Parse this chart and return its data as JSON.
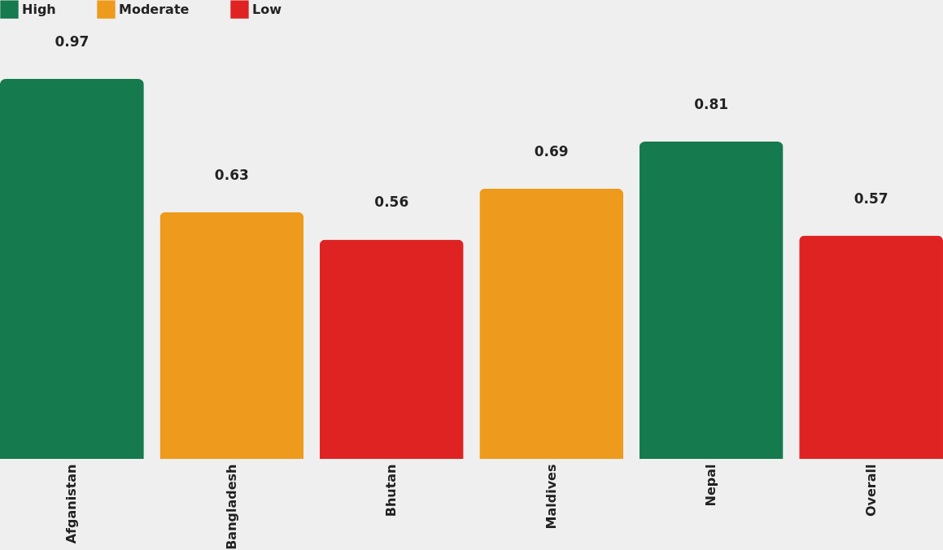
{
  "chart_data": {
    "type": "bar",
    "categories": [
      "Afganistan",
      "Bangladesh",
      "Bhutan",
      "Maldives",
      "Nepal",
      "Overall"
    ],
    "stacked": true,
    "data_labels": true,
    "legend": "top",
    "grid": false,
    "series": [
      {
        "name": "High",
        "color": "#157a4e",
        "values": [
          0.97,
          null,
          null,
          null,
          0.81,
          null
        ]
      },
      {
        "name": "Moderate",
        "color": "#ee9a1c",
        "values": [
          null,
          0.63,
          null,
          0.69,
          null,
          null
        ]
      },
      {
        "name": "Low",
        "color": "#df2323",
        "values": [
          null,
          null,
          0.56,
          null,
          null,
          0.57
        ]
      }
    ]
  }
}
